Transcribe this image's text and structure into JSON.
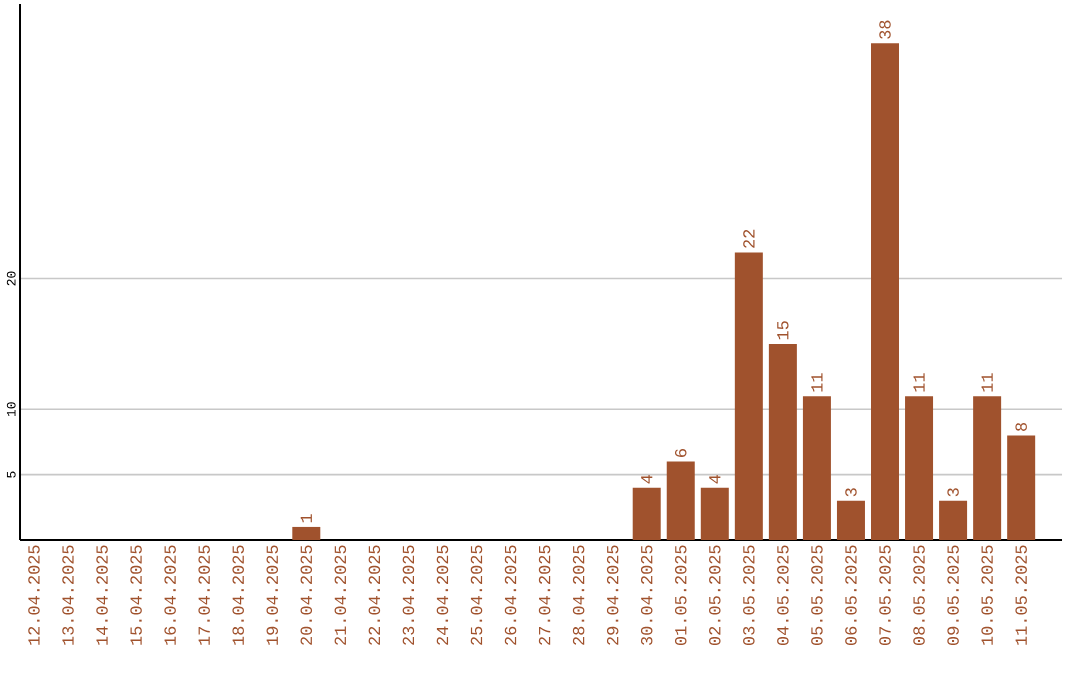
{
  "chart_data": {
    "type": "bar",
    "categories": [
      "12.04.2025",
      "13.04.2025",
      "14.04.2025",
      "15.04.2025",
      "16.04.2025",
      "17.04.2025",
      "18.04.2025",
      "19.04.2025",
      "20.04.2025",
      "21.04.2025",
      "22.04.2025",
      "23.04.2025",
      "24.04.2025",
      "25.04.2025",
      "26.04.2025",
      "27.04.2025",
      "28.04.2025",
      "29.04.2025",
      "30.04.2025",
      "01.05.2025",
      "02.05.2025",
      "03.05.2025",
      "04.05.2025",
      "05.05.2025",
      "06.05.2025",
      "07.05.2025",
      "08.05.2025",
      "09.05.2025",
      "10.05.2025",
      "11.05.2025"
    ],
    "values": [
      0,
      0,
      0,
      0,
      0,
      0,
      0,
      0,
      1,
      0,
      0,
      0,
      0,
      0,
      0,
      0,
      0,
      0,
      4,
      6,
      4,
      22,
      15,
      11,
      3,
      38,
      11,
      3,
      11,
      8
    ],
    "value_labels": [
      null,
      null,
      null,
      null,
      null,
      null,
      null,
      null,
      "1",
      null,
      null,
      null,
      null,
      null,
      null,
      null,
      null,
      null,
      "4",
      "6",
      "4",
      "22",
      "15",
      "11",
      "3",
      "38",
      "11",
      "3",
      "11",
      "8"
    ],
    "color": "#a0522d",
    "ylim": [
      0,
      41
    ],
    "yticks": [
      5,
      10,
      20
    ],
    "grid": "y"
  }
}
